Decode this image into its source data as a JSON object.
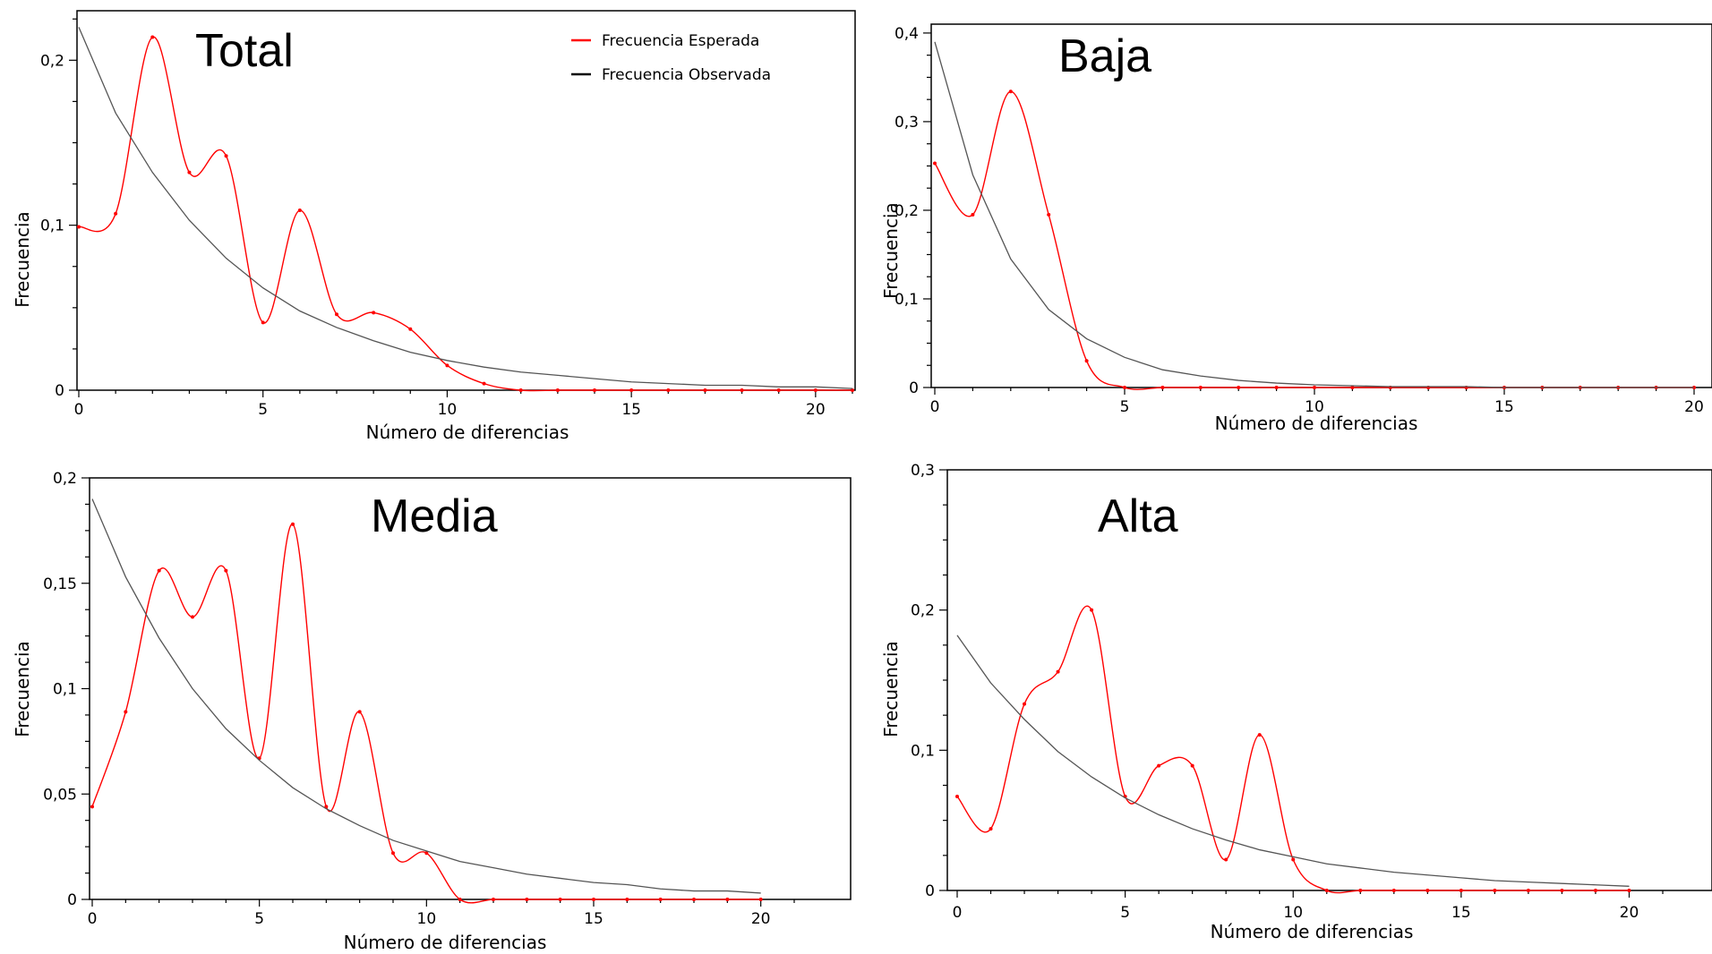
{
  "colors": {
    "expected": "#ff0000",
    "observed": "#555555",
    "frame": "#000000"
  },
  "legend": {
    "expected_label": "Frecuencia Esperada",
    "observed_label": "Frecuencia Observada"
  },
  "chart_data": [
    {
      "type": "line",
      "title": "Total",
      "xlabel": "Número de diferencias",
      "ylabel": "Frecuencia",
      "xlim": [
        0,
        21
      ],
      "ylim": [
        0,
        0.23
      ],
      "x_ticks": [
        0,
        5,
        10,
        15,
        20
      ],
      "x_tick_labels": [
        "0",
        "5",
        "10",
        "15",
        "20"
      ],
      "y_ticks": [
        0,
        0.1,
        0.2
      ],
      "y_tick_labels": [
        "0",
        "0,1",
        "0,2"
      ],
      "legend": "top-right",
      "series": [
        {
          "name": "Frecuencia Esperada",
          "x": [
            0,
            1,
            2,
            3,
            4,
            5,
            6,
            7,
            8,
            9,
            10,
            11,
            12,
            13,
            14,
            15,
            16,
            17,
            18,
            19,
            20,
            21
          ],
          "values": [
            0.099,
            0.107,
            0.214,
            0.132,
            0.142,
            0.041,
            0.109,
            0.046,
            0.047,
            0.037,
            0.015,
            0.004,
            0,
            0,
            0,
            0,
            0,
            0,
            0,
            0,
            0,
            0
          ]
        },
        {
          "name": "Frecuencia Observada",
          "x": [
            0,
            1,
            2,
            3,
            4,
            5,
            6,
            7,
            8,
            9,
            10,
            11,
            12,
            13,
            14,
            15,
            16,
            17,
            18,
            19,
            20,
            21
          ],
          "values": [
            0.22,
            0.168,
            0.132,
            0.103,
            0.08,
            0.062,
            0.048,
            0.038,
            0.03,
            0.023,
            0.018,
            0.014,
            0.011,
            0.009,
            0.007,
            0.005,
            0.004,
            0.003,
            0.003,
            0.002,
            0.002,
            0.001
          ]
        }
      ]
    },
    {
      "type": "line",
      "title": "Baja",
      "xlabel": "Número de diferencias",
      "ylabel": "Frecuencia",
      "xlim": [
        0,
        20
      ],
      "ylim": [
        0,
        0.41
      ],
      "x_ticks": [
        0,
        5,
        10,
        15,
        20
      ],
      "x_tick_labels": [
        "0",
        "5",
        "10",
        "15",
        "20"
      ],
      "y_ticks": [
        0,
        0.1,
        0.2,
        0.3,
        0.4
      ],
      "y_tick_labels": [
        "0",
        "0,1",
        "0,2",
        "0,3",
        "0,4"
      ],
      "series": [
        {
          "name": "Frecuencia Esperada",
          "x": [
            0,
            1,
            2,
            3,
            4,
            5,
            6,
            7,
            8,
            9,
            10,
            11,
            12,
            13,
            14,
            15,
            16,
            17,
            18,
            19,
            20
          ],
          "values": [
            0.253,
            0.195,
            0.334,
            0.195,
            0.03,
            0,
            0,
            0,
            0,
            0,
            0,
            0,
            0,
            0,
            0,
            0,
            0,
            0,
            0,
            0,
            0
          ]
        },
        {
          "name": "Frecuencia Observada",
          "x": [
            0,
            1,
            2,
            3,
            4,
            5,
            6,
            7,
            8,
            9,
            10,
            11,
            12,
            13,
            14,
            15,
            16,
            17,
            18,
            19,
            20
          ],
          "values": [
            0.39,
            0.24,
            0.145,
            0.088,
            0.055,
            0.034,
            0.02,
            0.013,
            0.008,
            0.005,
            0.003,
            0.002,
            0.001,
            0.001,
            0.001,
            0,
            0,
            0,
            0,
            0,
            0
          ]
        }
      ]
    },
    {
      "type": "line",
      "title": "Media",
      "xlabel": "Número de diferencias",
      "ylabel": "Frecuencia",
      "xlim": [
        0,
        21
      ],
      "ylim": [
        0,
        0.2
      ],
      "x_ticks": [
        0,
        5,
        10,
        15,
        20
      ],
      "x_tick_labels": [
        "0",
        "5",
        "10",
        "15",
        "20"
      ],
      "y_ticks": [
        0,
        0.05,
        0.1,
        0.15,
        0.2
      ],
      "y_tick_labels": [
        "0",
        "0,05",
        "0,1",
        "0,15",
        "0,2"
      ],
      "series": [
        {
          "name": "Frecuencia Esperada",
          "x": [
            0,
            1,
            2,
            3,
            4,
            5,
            6,
            7,
            8,
            9,
            10,
            11,
            12,
            13,
            14,
            15,
            16,
            17,
            18,
            19,
            20
          ],
          "values": [
            0.044,
            0.089,
            0.156,
            0.134,
            0.156,
            0.067,
            0.178,
            0.044,
            0.089,
            0.022,
            0.022,
            0,
            0,
            0,
            0,
            0,
            0,
            0,
            0,
            0,
            0
          ]
        },
        {
          "name": "Frecuencia Observada",
          "x": [
            0,
            1,
            2,
            3,
            4,
            5,
            6,
            7,
            8,
            9,
            10,
            11,
            12,
            13,
            14,
            15,
            16,
            17,
            18,
            19,
            20
          ],
          "values": [
            0.19,
            0.153,
            0.124,
            0.1,
            0.081,
            0.066,
            0.053,
            0.043,
            0.035,
            0.028,
            0.023,
            0.018,
            0.015,
            0.012,
            0.01,
            0.008,
            0.007,
            0.005,
            0.004,
            0.004,
            0.003
          ]
        }
      ]
    },
    {
      "type": "line",
      "title": "Alta",
      "xlabel": "Número de diferencias",
      "ylabel": "Frecuencia",
      "xlim": [
        0,
        21
      ],
      "ylim": [
        0,
        0.3
      ],
      "x_ticks": [
        0,
        5,
        10,
        15,
        20
      ],
      "x_tick_labels": [
        "0",
        "5",
        "10",
        "15",
        "20"
      ],
      "y_ticks": [
        0,
        0.1,
        0.2,
        0.3
      ],
      "y_tick_labels": [
        "0",
        "0,1",
        "0,2",
        "0,3"
      ],
      "series": [
        {
          "name": "Frecuencia Esperada",
          "x": [
            0,
            1,
            2,
            3,
            4,
            5,
            6,
            7,
            8,
            9,
            10,
            11,
            12,
            13,
            14,
            15,
            16,
            17,
            18,
            19,
            20
          ],
          "values": [
            0.067,
            0.044,
            0.133,
            0.156,
            0.2,
            0.067,
            0.089,
            0.089,
            0.022,
            0.111,
            0.022,
            0,
            0,
            0,
            0,
            0,
            0,
            0,
            0,
            0,
            0
          ]
        },
        {
          "name": "Frecuencia Observada",
          "x": [
            0,
            1,
            2,
            3,
            4,
            5,
            6,
            7,
            8,
            9,
            10,
            11,
            12,
            13,
            14,
            15,
            16,
            17,
            18,
            19,
            20
          ],
          "values": [
            0.182,
            0.148,
            0.122,
            0.099,
            0.081,
            0.066,
            0.054,
            0.044,
            0.036,
            0.029,
            0.024,
            0.019,
            0.016,
            0.013,
            0.011,
            0.009,
            0.007,
            0.006,
            0.005,
            0.004,
            0.003
          ]
        }
      ]
    }
  ]
}
